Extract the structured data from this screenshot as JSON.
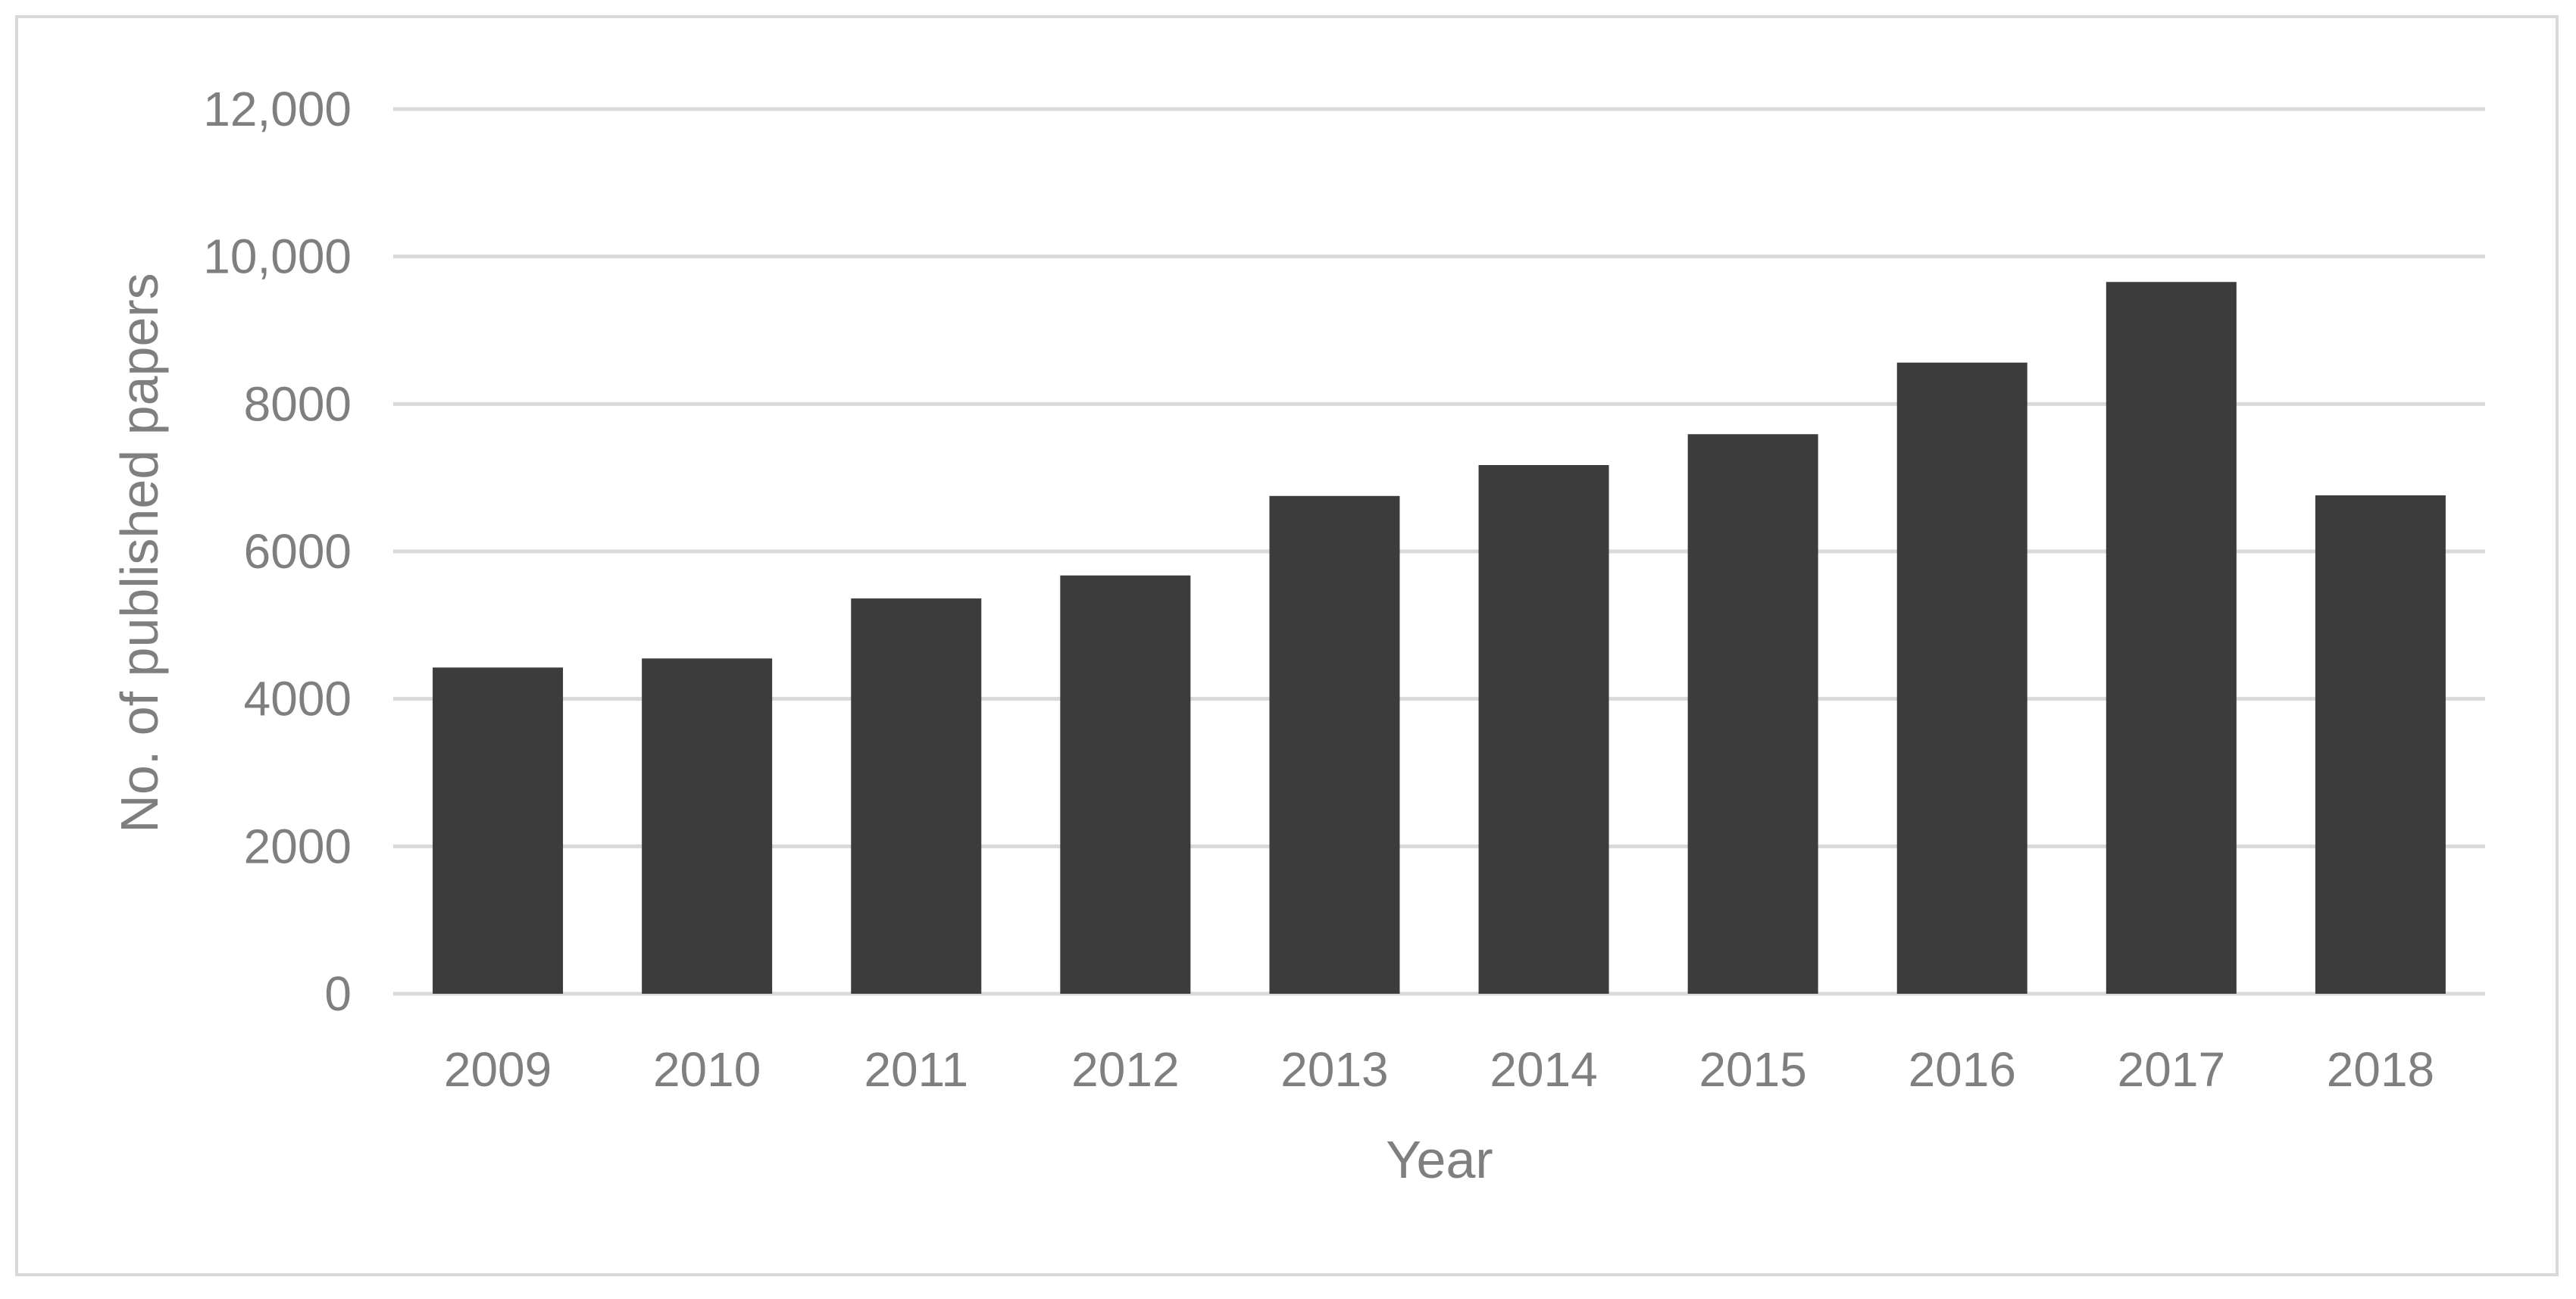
{
  "chart_data": {
    "type": "bar",
    "title": "",
    "xlabel": "Year",
    "ylabel": "No. of published papers",
    "categories": [
      "2009",
      "2010",
      "2011",
      "2012",
      "2013",
      "2014",
      "2015",
      "2016",
      "2017",
      "2018"
    ],
    "values": [
      4425,
      4548,
      5362,
      5674,
      6752,
      7171,
      7590,
      8561,
      9655,
      6760
    ],
    "ylim": [
      0,
      12000
    ],
    "yticks": [
      0,
      2000,
      4000,
      6000,
      8000,
      10000,
      12000
    ],
    "ytick_labels": [
      "0",
      "2000",
      "4000",
      "6000",
      "8000",
      "10,000",
      "12,000"
    ],
    "grid": true,
    "legend": "none",
    "colors": {
      "bar": "#3c3c3c",
      "grid": "#d9d9d9",
      "text": "#7f7f7f",
      "border": "#d9d9d9"
    }
  }
}
